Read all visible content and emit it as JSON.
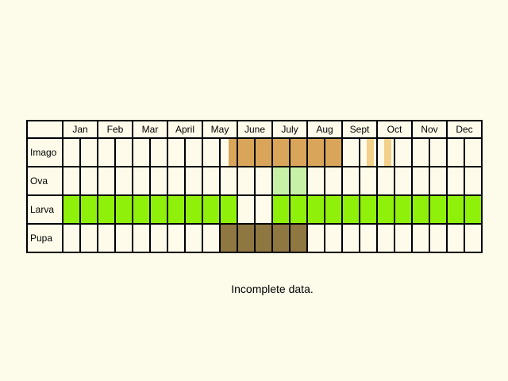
{
  "months": [
    "Jan",
    "Feb",
    "Mar",
    "April",
    "May",
    "June",
    "July",
    "Aug",
    "Sept",
    "Oct",
    "Nov",
    "Dec"
  ],
  "stages": [
    {
      "name": "Imago",
      "segments": [
        {
          "start": 9.5,
          "end": 16,
          "color": "#d9a55a"
        },
        {
          "start": 17.4,
          "end": 17.85,
          "color": "#f3d18a"
        },
        {
          "start": 18.4,
          "end": 18.85,
          "color": "#f3d18a"
        }
      ]
    },
    {
      "name": "Ova",
      "segments": [
        {
          "start": 12,
          "end": 14,
          "color": "#c8f1a8"
        }
      ]
    },
    {
      "name": "Larva",
      "segments": [
        {
          "start": 0,
          "end": 10,
          "color": "#8ff00a"
        },
        {
          "start": 12,
          "end": 24,
          "color": "#8ff00a"
        }
      ]
    },
    {
      "name": "Pupa",
      "segments": [
        {
          "start": 9,
          "end": 14,
          "color": "#8f7741"
        }
      ]
    }
  ],
  "note": "Incomplete data."
}
